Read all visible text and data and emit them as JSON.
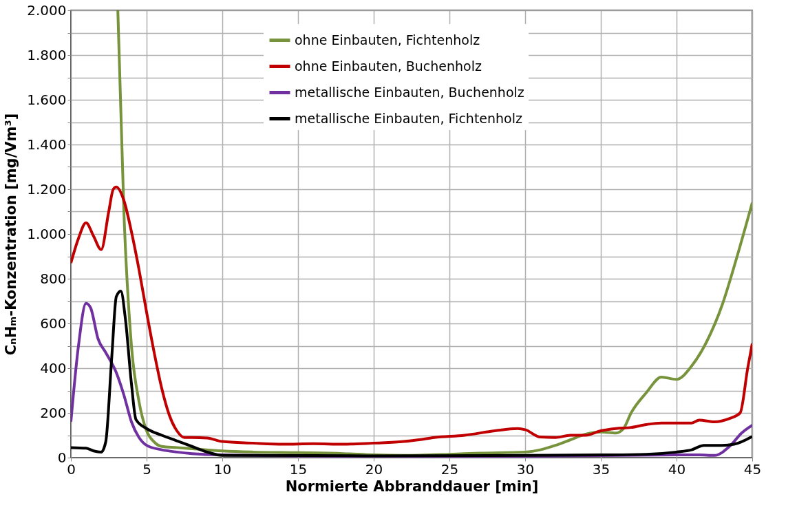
{
  "chart_data": {
    "type": "line",
    "xlabel": "Normierte Abbranddauer [min]",
    "ylabel": "CₙHₘ-Konzentration [mg/Vm³]",
    "xlim": [
      0,
      45
    ],
    "xticks": [
      0,
      5,
      10,
      15,
      20,
      25,
      30,
      35,
      40,
      45
    ],
    "ylim": [
      0,
      2000
    ],
    "yticks": [
      0,
      {
        "value": 100,
        "label": null
      },
      200,
      {
        "value": 300,
        "label": null
      },
      400,
      {
        "value": 500,
        "label": null
      },
      600,
      {
        "value": 700,
        "label": null
      },
      800,
      {
        "value": 900,
        "label": null
      },
      {
        "value": 1000,
        "label": "1.000"
      },
      {
        "value": 1100,
        "label": null
      },
      {
        "value": 1200,
        "label": "1.200"
      },
      {
        "value": 1300,
        "label": null
      },
      {
        "value": 1400,
        "label": "1.400"
      },
      {
        "value": 1500,
        "label": null
      },
      {
        "value": 1600,
        "label": "1.600"
      },
      {
        "value": 1700,
        "label": null
      },
      {
        "value": 1800,
        "label": "1.800"
      },
      {
        "value": 1900,
        "label": null
      },
      {
        "value": 2000,
        "label": "2.000"
      }
    ],
    "grid": true,
    "legend": "top",
    "marker": "none",
    "line_style": "solid",
    "series": [
      {
        "name": "ohne Einbauten, Fichtenholz",
        "color": "#77933c",
        "x": [
          3.1,
          3.5,
          4,
          4.5,
          5,
          5.5,
          6,
          7,
          8,
          10,
          12,
          15,
          18,
          20,
          22,
          25,
          27,
          30,
          31,
          32,
          33,
          34,
          35,
          36,
          36.5,
          37,
          38,
          39,
          40,
          41,
          42,
          43,
          44,
          45
        ],
        "values": [
          2000,
          1100,
          500,
          250,
          120,
          70,
          50,
          45,
          40,
          30,
          25,
          22,
          18,
          12,
          10,
          15,
          20,
          25,
          35,
          55,
          80,
          105,
          115,
          110,
          130,
          200,
          290,
          360,
          350,
          410,
          520,
          680,
          900,
          1140
        ]
      },
      {
        "name": "ohne Einbauten, Buchenholz",
        "color": "#c00000",
        "x": [
          0,
          0.5,
          1,
          1.5,
          2,
          2.5,
          2.8,
          3,
          3.5,
          4,
          4.5,
          5,
          5.5,
          6,
          6.5,
          7,
          7.5,
          8,
          9,
          10,
          12,
          14,
          16,
          18,
          20,
          22,
          23,
          24,
          26,
          28,
          29.5,
          30,
          31,
          32,
          33,
          34,
          35,
          36,
          37,
          38,
          39,
          41,
          41.5,
          42.5,
          43.5,
          44.2,
          44.7,
          45
        ],
        "values": [
          870,
          980,
          1050,
          990,
          930,
          1100,
          1200,
          1210,
          1150,
          1010,
          840,
          650,
          470,
          310,
          190,
          120,
          90,
          90,
          88,
          72,
          65,
          60,
          62,
          60,
          65,
          72,
          80,
          90,
          100,
          120,
          130,
          125,
          92,
          90,
          100,
          100,
          120,
          130,
          135,
          148,
          155,
          155,
          168,
          160,
          175,
          200,
          400,
          510
        ]
      },
      {
        "name": "metallische Einbauten, Buchenholz",
        "color": "#7030a0",
        "x": [
          0,
          0.5,
          1,
          1.3,
          1.8,
          2.3,
          3,
          3.5,
          4,
          4.5,
          5,
          6,
          7,
          8,
          10,
          15,
          20,
          30,
          40,
          41.5,
          42.5,
          43.5,
          44.3,
          45
        ],
        "values": [
          160,
          500,
          690,
          670,
          530,
          470,
          380,
          280,
          160,
          90,
          55,
          35,
          25,
          18,
          12,
          8,
          6,
          6,
          12,
          12,
          10,
          50,
          110,
          145
        ]
      },
      {
        "name": "metallische Einbauten, Fichtenholz",
        "color": "#000000",
        "x": [
          0,
          1,
          1.5,
          2,
          2.3,
          2.7,
          3,
          3.3,
          3.6,
          4,
          4.3,
          5,
          6,
          7,
          8,
          9,
          10,
          12,
          20,
          30,
          35,
          38,
          40,
          41,
          41.8,
          43,
          43.8,
          45
        ],
        "values": [
          45,
          42,
          30,
          25,
          70,
          450,
          720,
          745,
          620,
          330,
          170,
          130,
          100,
          75,
          50,
          25,
          10,
          10,
          8,
          10,
          12,
          15,
          25,
          35,
          55,
          55,
          60,
          95
        ]
      }
    ]
  }
}
